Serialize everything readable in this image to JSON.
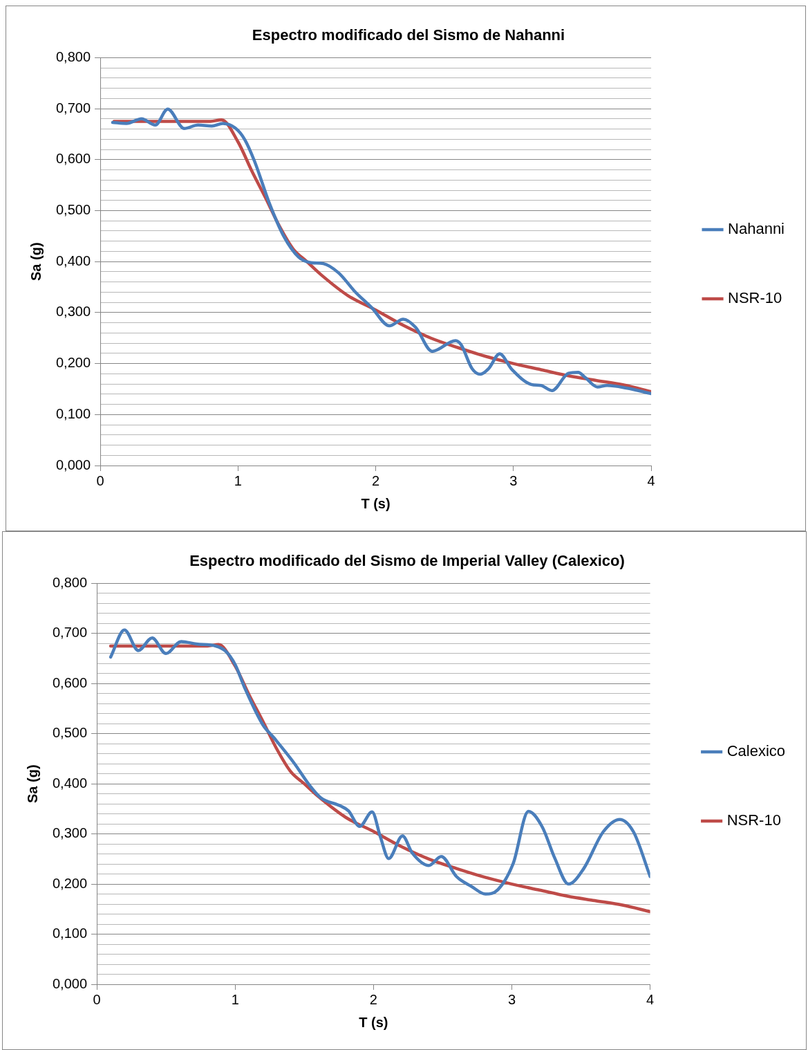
{
  "chart_data": [
    {
      "type": "line",
      "title": "Espectro modificado del Sismo de Nahanni",
      "xlabel": "T (s)",
      "ylabel": "Sa (g)",
      "xlim": [
        0,
        4
      ],
      "xticks": [
        0,
        1,
        2,
        3,
        4
      ],
      "ylim": [
        0,
        0.8
      ],
      "yticks": [
        {
          "value": 0,
          "label": "0,000"
        },
        {
          "value": 0.02,
          "label": null
        },
        {
          "value": 0.04,
          "label": null
        },
        {
          "value": 0.06,
          "label": null
        },
        {
          "value": 0.08,
          "label": null
        },
        {
          "value": 0.1,
          "label": "0,100"
        },
        {
          "value": 0.12,
          "label": null
        },
        {
          "value": 0.14,
          "label": null
        },
        {
          "value": 0.16,
          "label": null
        },
        {
          "value": 0.18,
          "label": null
        },
        {
          "value": 0.2,
          "label": "0,200"
        },
        {
          "value": 0.22,
          "label": null
        },
        {
          "value": 0.24,
          "label": null
        },
        {
          "value": 0.26,
          "label": null
        },
        {
          "value": 0.28,
          "label": null
        },
        {
          "value": 0.3,
          "label": "0,300"
        },
        {
          "value": 0.32,
          "label": null
        },
        {
          "value": 0.34,
          "label": null
        },
        {
          "value": 0.36,
          "label": null
        },
        {
          "value": 0.38,
          "label": null
        },
        {
          "value": 0.4,
          "label": "0,400"
        },
        {
          "value": 0.42,
          "label": null
        },
        {
          "value": 0.44,
          "label": null
        },
        {
          "value": 0.46,
          "label": null
        },
        {
          "value": 0.48,
          "label": null
        },
        {
          "value": 0.5,
          "label": "0,500"
        },
        {
          "value": 0.52,
          "label": null
        },
        {
          "value": 0.54,
          "label": null
        },
        {
          "value": 0.56,
          "label": null
        },
        {
          "value": 0.58,
          "label": null
        },
        {
          "value": 0.6,
          "label": "0,600"
        },
        {
          "value": 0.62,
          "label": null
        },
        {
          "value": 0.64,
          "label": null
        },
        {
          "value": 0.66,
          "label": null
        },
        {
          "value": 0.68,
          "label": null
        },
        {
          "value": 0.7,
          "label": "0,700"
        },
        {
          "value": 0.72,
          "label": null
        },
        {
          "value": 0.74,
          "label": null
        },
        {
          "value": 0.76,
          "label": null
        },
        {
          "value": 0.78,
          "label": null
        },
        {
          "value": 0.8,
          "label": "0,800"
        }
      ],
      "grid": "y",
      "legend": "right",
      "marker": "none",
      "line_style": "solid",
      "series": [
        {
          "name": "Nahanni",
          "color": "#4a7ebb",
          "x": [
            0.09,
            0.19,
            0.3,
            0.4,
            0.49,
            0.61,
            0.71,
            0.81,
            0.89,
            0.98,
            1.05,
            1.12,
            1.23,
            1.33,
            1.44,
            1.53,
            1.62,
            1.73,
            1.85,
            1.97,
            2.1,
            2.2,
            2.29,
            2.41,
            2.58,
            2.62,
            2.7,
            2.76,
            2.82,
            2.9,
            2.99,
            3.13,
            3.2,
            3.28,
            3.4,
            3.47,
            3.52,
            3.61,
            3.68,
            3.82,
            4.0
          ],
          "values": [
            0.673,
            0.671,
            0.68,
            0.668,
            0.699,
            0.661,
            0.668,
            0.666,
            0.671,
            0.662,
            0.639,
            0.597,
            0.513,
            0.451,
            0.409,
            0.398,
            0.396,
            0.378,
            0.341,
            0.31,
            0.274,
            0.287,
            0.271,
            0.224,
            0.245,
            0.237,
            0.19,
            0.179,
            0.19,
            0.219,
            0.188,
            0.159,
            0.157,
            0.147,
            0.181,
            0.183,
            0.173,
            0.154,
            0.157,
            0.152,
            0.141
          ]
        },
        {
          "name": "NSR-10",
          "color": "#be4b48",
          "x": [
            0.1,
            0.2,
            0.3,
            0.4,
            0.5,
            0.6,
            0.7,
            0.8,
            0.88,
            1.0,
            1.1,
            1.2,
            1.3,
            1.4,
            1.5,
            1.6,
            1.8,
            2.0,
            2.2,
            2.4,
            2.6,
            2.8,
            3.0,
            3.2,
            3.4,
            3.6,
            3.8,
            4.0
          ],
          "values": [
            0.675,
            0.675,
            0.675,
            0.675,
            0.675,
            0.675,
            0.675,
            0.675,
            0.678,
            0.635,
            0.578,
            0.525,
            0.47,
            0.425,
            0.4,
            0.375,
            0.333,
            0.305,
            0.275,
            0.25,
            0.231,
            0.214,
            0.2,
            0.188,
            0.176,
            0.167,
            0.158,
            0.145
          ]
        }
      ]
    },
    {
      "type": "line",
      "title": "Espectro modificado del Sismo de Imperial Valley (Calexico)",
      "xlabel": "T (s)",
      "ylabel": "Sa (g)",
      "xlim": [
        0,
        4
      ],
      "xticks": [
        0,
        1,
        2,
        3,
        4
      ],
      "ylim": [
        0,
        0.8
      ],
      "yticks": [
        {
          "value": 0,
          "label": "0,000"
        },
        {
          "value": 0.02,
          "label": null
        },
        {
          "value": 0.04,
          "label": null
        },
        {
          "value": 0.06,
          "label": null
        },
        {
          "value": 0.08,
          "label": null
        },
        {
          "value": 0.1,
          "label": "0,100"
        },
        {
          "value": 0.12,
          "label": null
        },
        {
          "value": 0.14,
          "label": null
        },
        {
          "value": 0.16,
          "label": null
        },
        {
          "value": 0.18,
          "label": null
        },
        {
          "value": 0.2,
          "label": "0,200"
        },
        {
          "value": 0.22,
          "label": null
        },
        {
          "value": 0.24,
          "label": null
        },
        {
          "value": 0.26,
          "label": null
        },
        {
          "value": 0.28,
          "label": null
        },
        {
          "value": 0.3,
          "label": "0,300"
        },
        {
          "value": 0.32,
          "label": null
        },
        {
          "value": 0.34,
          "label": null
        },
        {
          "value": 0.36,
          "label": null
        },
        {
          "value": 0.38,
          "label": null
        },
        {
          "value": 0.4,
          "label": "0,400"
        },
        {
          "value": 0.42,
          "label": null
        },
        {
          "value": 0.44,
          "label": null
        },
        {
          "value": 0.46,
          "label": null
        },
        {
          "value": 0.48,
          "label": null
        },
        {
          "value": 0.5,
          "label": "0,500"
        },
        {
          "value": 0.52,
          "label": null
        },
        {
          "value": 0.54,
          "label": null
        },
        {
          "value": 0.56,
          "label": null
        },
        {
          "value": 0.58,
          "label": null
        },
        {
          "value": 0.6,
          "label": "0,600"
        },
        {
          "value": 0.62,
          "label": null
        },
        {
          "value": 0.64,
          "label": null
        },
        {
          "value": 0.66,
          "label": null
        },
        {
          "value": 0.68,
          "label": null
        },
        {
          "value": 0.7,
          "label": "0,700"
        },
        {
          "value": 0.72,
          "label": null
        },
        {
          "value": 0.74,
          "label": null
        },
        {
          "value": 0.76,
          "label": null
        },
        {
          "value": 0.78,
          "label": null
        },
        {
          "value": 0.8,
          "label": "0,800"
        }
      ],
      "grid": "y",
      "legend": "right",
      "marker": "none",
      "line_style": "solid",
      "series": [
        {
          "name": "Calexico",
          "color": "#4a7ebb",
          "x": [
            0.1,
            0.2,
            0.3,
            0.4,
            0.5,
            0.61,
            0.72,
            0.86,
            0.93,
            1.0,
            1.07,
            1.2,
            1.28,
            1.43,
            1.53,
            1.62,
            1.76,
            1.82,
            1.9,
            1.99,
            2.05,
            2.11,
            2.21,
            2.28,
            2.4,
            2.49,
            2.6,
            2.71,
            2.81,
            2.9,
            3.01,
            3.12,
            3.22,
            3.31,
            3.41,
            3.52,
            3.66,
            3.78,
            3.88,
            4.0
          ],
          "values": [
            0.653,
            0.707,
            0.666,
            0.691,
            0.66,
            0.684,
            0.679,
            0.675,
            0.665,
            0.638,
            0.591,
            0.518,
            0.492,
            0.44,
            0.4,
            0.372,
            0.356,
            0.346,
            0.315,
            0.344,
            0.294,
            0.251,
            0.296,
            0.262,
            0.237,
            0.255,
            0.215,
            0.195,
            0.18,
            0.189,
            0.241,
            0.345,
            0.314,
            0.252,
            0.2,
            0.231,
            0.304,
            0.329,
            0.304,
            0.215
          ]
        },
        {
          "name": "NSR-10",
          "color": "#be4b48",
          "x": [
            0.1,
            0.2,
            0.3,
            0.4,
            0.5,
            0.6,
            0.7,
            0.8,
            0.88,
            1.0,
            1.1,
            1.2,
            1.3,
            1.4,
            1.5,
            1.6,
            1.8,
            2.0,
            2.2,
            2.4,
            2.6,
            2.8,
            3.0,
            3.2,
            3.4,
            3.6,
            3.8,
            4.0
          ],
          "values": [
            0.675,
            0.675,
            0.675,
            0.675,
            0.675,
            0.675,
            0.675,
            0.675,
            0.678,
            0.635,
            0.578,
            0.525,
            0.47,
            0.425,
            0.4,
            0.375,
            0.333,
            0.305,
            0.275,
            0.25,
            0.231,
            0.214,
            0.2,
            0.188,
            0.176,
            0.167,
            0.158,
            0.145
          ]
        }
      ]
    }
  ]
}
